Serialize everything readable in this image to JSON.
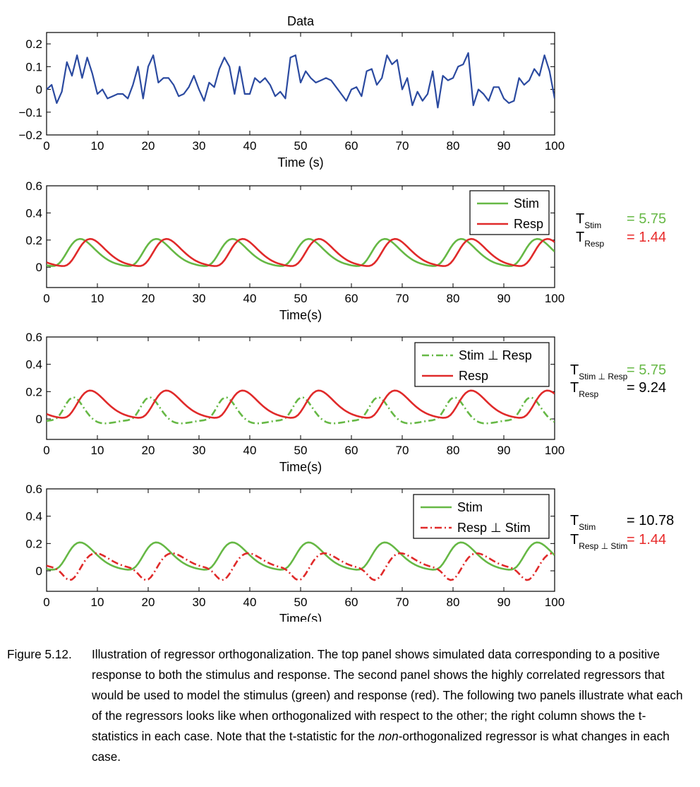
{
  "chart_data": [
    {
      "type": "line",
      "title": "Data",
      "xlabel": "Time (s)",
      "ylabel": "",
      "xlim": [
        0,
        100
      ],
      "ylim": [
        -0.2,
        0.25
      ],
      "xticks": [
        "0",
        "10",
        "20",
        "30",
        "40",
        "50",
        "60",
        "70",
        "80",
        "90",
        "100"
      ],
      "yticks": [
        "-0.2",
        "-0.1",
        "0",
        "0.1",
        "0.2"
      ],
      "yticks_values": [
        -0.2,
        -0.1,
        0,
        0.1,
        0.2
      ],
      "series": [
        {
          "color": "#2b4aa0",
          "style": "solid",
          "x": [
            0,
            1,
            2,
            3,
            4,
            5,
            6,
            7,
            8,
            9,
            10,
            11,
            12,
            13,
            14,
            15,
            16,
            17,
            18,
            19,
            20,
            21,
            22,
            23,
            24,
            25,
            26,
            27,
            28,
            29,
            30,
            31,
            32,
            33,
            34,
            35,
            36,
            37,
            38,
            39,
            40,
            41,
            42,
            43,
            44,
            45,
            46,
            47,
            48,
            49,
            50,
            51,
            52,
            53,
            54,
            55,
            56,
            57,
            58,
            59,
            60,
            61,
            62,
            63,
            64,
            65,
            66,
            67,
            68,
            69,
            70,
            71,
            72,
            73,
            74,
            75,
            76,
            77,
            78,
            79,
            80,
            81,
            82,
            83,
            84,
            85,
            86,
            87,
            88,
            89,
            90,
            91,
            92,
            93,
            94,
            95,
            96,
            97,
            98,
            99,
            100
          ],
          "values": [
            0.0,
            0.02,
            -0.06,
            -0.01,
            0.12,
            0.06,
            0.15,
            0.05,
            0.14,
            0.07,
            -0.02,
            0.0,
            -0.04,
            -0.03,
            -0.02,
            -0.02,
            -0.04,
            0.02,
            0.1,
            -0.04,
            0.1,
            0.15,
            0.03,
            0.05,
            0.05,
            0.02,
            -0.03,
            -0.02,
            0.01,
            0.06,
            0.0,
            -0.05,
            0.03,
            0.01,
            0.09,
            0.14,
            0.1,
            -0.02,
            0.1,
            -0.02,
            -0.02,
            0.05,
            0.03,
            0.05,
            0.02,
            -0.03,
            -0.01,
            -0.04,
            0.14,
            0.15,
            0.03,
            0.08,
            0.05,
            0.03,
            0.04,
            0.05,
            0.04,
            0.01,
            -0.02,
            -0.05,
            0.0,
            0.01,
            -0.03,
            0.08,
            0.09,
            0.02,
            0.05,
            0.15,
            0.11,
            0.13,
            0.0,
            0.05,
            -0.07,
            -0.01,
            -0.05,
            -0.02,
            0.08,
            -0.08,
            0.06,
            0.04,
            0.05,
            0.1,
            0.11,
            0.16,
            -0.07,
            0.0,
            -0.02,
            -0.05,
            0.01,
            0.01,
            -0.04,
            -0.06,
            -0.05,
            0.05,
            0.02,
            0.04,
            0.09,
            0.06,
            0.15,
            0.08,
            -0.04
          ]
        }
      ],
      "legend": []
    },
    {
      "type": "line",
      "title": "",
      "xlabel": "Time(s)",
      "ylabel": "",
      "xlim": [
        0,
        100
      ],
      "ylim": [
        -0.15,
        0.6
      ],
      "xticks": [
        "0",
        "10",
        "20",
        "30",
        "40",
        "50",
        "60",
        "70",
        "80",
        "90",
        "100"
      ],
      "yticks": [
        "0",
        "0.2",
        "0.4",
        "0.6"
      ],
      "yticks_values": [
        0,
        0.2,
        0.4,
        0.6
      ],
      "series": [
        {
          "name": "Stim",
          "color": "#66b845",
          "style": "solid",
          "offset": 0,
          "amplitude": 0.2
        },
        {
          "name": "Resp",
          "color": "#e02a2a",
          "style": "solid",
          "offset": 2,
          "amplitude": 0.2
        }
      ],
      "legend": [
        "Stim",
        "Resp"
      ],
      "legend_placement": "top-right",
      "stats": [
        {
          "label": "T",
          "sub": "Stim",
          "value": "= 5.75",
          "color": "#66b845"
        },
        {
          "label": "T",
          "sub": "Resp",
          "value": "= 1.44",
          "color": "#e82a2a"
        }
      ]
    },
    {
      "type": "line",
      "title": "",
      "xlabel": "Time(s)",
      "ylabel": "",
      "xlim": [
        0,
        100
      ],
      "ylim": [
        -0.15,
        0.6
      ],
      "xticks": [
        "0",
        "10",
        "20",
        "30",
        "40",
        "50",
        "60",
        "70",
        "80",
        "90",
        "100"
      ],
      "yticks": [
        "0",
        "0.2",
        "0.4",
        "0.6"
      ],
      "yticks_values": [
        0,
        0.2,
        0.4,
        0.6
      ],
      "series": [
        {
          "name": "Stim ⊥ Resp",
          "color": "#66b845",
          "style": "dashdot",
          "kind": "orth_stim"
        },
        {
          "name": "Resp",
          "color": "#e02a2a",
          "style": "solid",
          "offset": 2,
          "amplitude": 0.2
        }
      ],
      "legend": [
        "Stim ⊥ Resp",
        "Resp"
      ],
      "legend_placement": "top-right",
      "stats": [
        {
          "label": "T",
          "sub": "Stim ⊥ Resp",
          "value": "= 5.75",
          "color": "#66b845"
        },
        {
          "label": "T",
          "sub": "Resp",
          "value": "= 9.24",
          "color": "#000000"
        }
      ]
    },
    {
      "type": "line",
      "title": "",
      "xlabel": "Time(s)",
      "ylabel": "",
      "xlim": [
        0,
        100
      ],
      "ylim": [
        -0.15,
        0.6
      ],
      "xticks": [
        "0",
        "10",
        "20",
        "30",
        "40",
        "50",
        "60",
        "70",
        "80",
        "90",
        "100"
      ],
      "yticks": [
        "0",
        "0.2",
        "0.4",
        "0.6"
      ],
      "yticks_values": [
        0,
        0.2,
        0.4,
        0.6
      ],
      "series": [
        {
          "name": "Stim",
          "color": "#66b845",
          "style": "solid",
          "offset": 0,
          "amplitude": 0.2
        },
        {
          "name": "Resp ⊥ Stim",
          "color": "#e02a2a",
          "style": "dashdot",
          "kind": "orth_resp"
        }
      ],
      "legend": [
        "Stim",
        "Resp ⊥ Stim"
      ],
      "legend_placement": "top-right",
      "stats": [
        {
          "label": "T",
          "sub": "Stim",
          "value": "= 10.78",
          "color": "#000000"
        },
        {
          "label": "T",
          "sub": "Resp ⊥ Stim",
          "value": "= 1.44",
          "color": "#e82a2a"
        }
      ]
    }
  ],
  "caption": {
    "label": "Figure 5.12.",
    "text_before": "Illustration of regressor orthogonalization. The top panel shows simulated data corresponding to a positive response to both the stimulus and response. The second panel shows the highly correlated regressors that would be used to model the stimulus (green) and response (red). The following two panels illustrate what each of the regressors looks like when orthogonalized with respect to the other; the right column shows the t-statistics in each case. Note that the t-statistic for the ",
    "text_emph": "non",
    "text_after": "-orthogonalized regressor is what changes in each case."
  }
}
